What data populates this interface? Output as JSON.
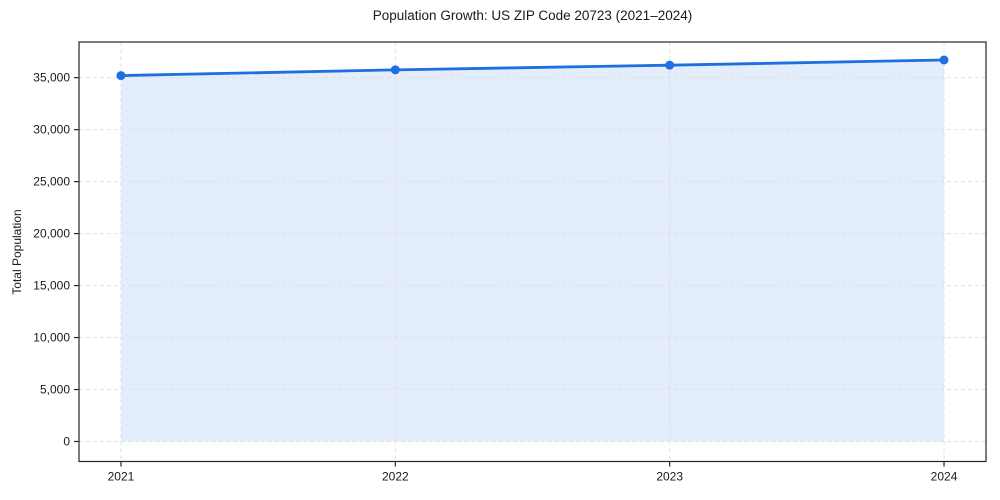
{
  "chart_data": {
    "type": "area",
    "title": "Population Growth: US ZIP Code 20723 (2021–2024)",
    "xlabel": "",
    "ylabel": "Total Population",
    "x": [
      2021,
      2022,
      2023,
      2024
    ],
    "x_tick_labels": [
      "2021",
      "2022",
      "2023",
      "2024"
    ],
    "series": [
      {
        "name": "Total Population",
        "values": [
          35200,
          35750,
          36200,
          36700
        ]
      }
    ],
    "y_tick_values": [
      0,
      5000,
      10000,
      15000,
      20000,
      25000,
      30000,
      35000
    ],
    "y_tick_labels": [
      "0",
      "5,000",
      "10,000",
      "15,000",
      "20,000",
      "25,000",
      "30,000",
      "35,000"
    ],
    "xlim": [
      2020.847,
      2024.153
    ],
    "ylim": [
      -1924,
      38430
    ],
    "grid": "dashed-both-axes",
    "legend": "none",
    "marker_style": "filled-circle",
    "colors": {
      "line": "#1E6FE0",
      "marker": "#1E6FE0",
      "fill": "#1E6FE0",
      "fill_opacity": 0.12,
      "grid": "#E0E0E0",
      "spine": "#262626",
      "text": "#1A1A1A",
      "background": "#FFFFFF"
    }
  }
}
